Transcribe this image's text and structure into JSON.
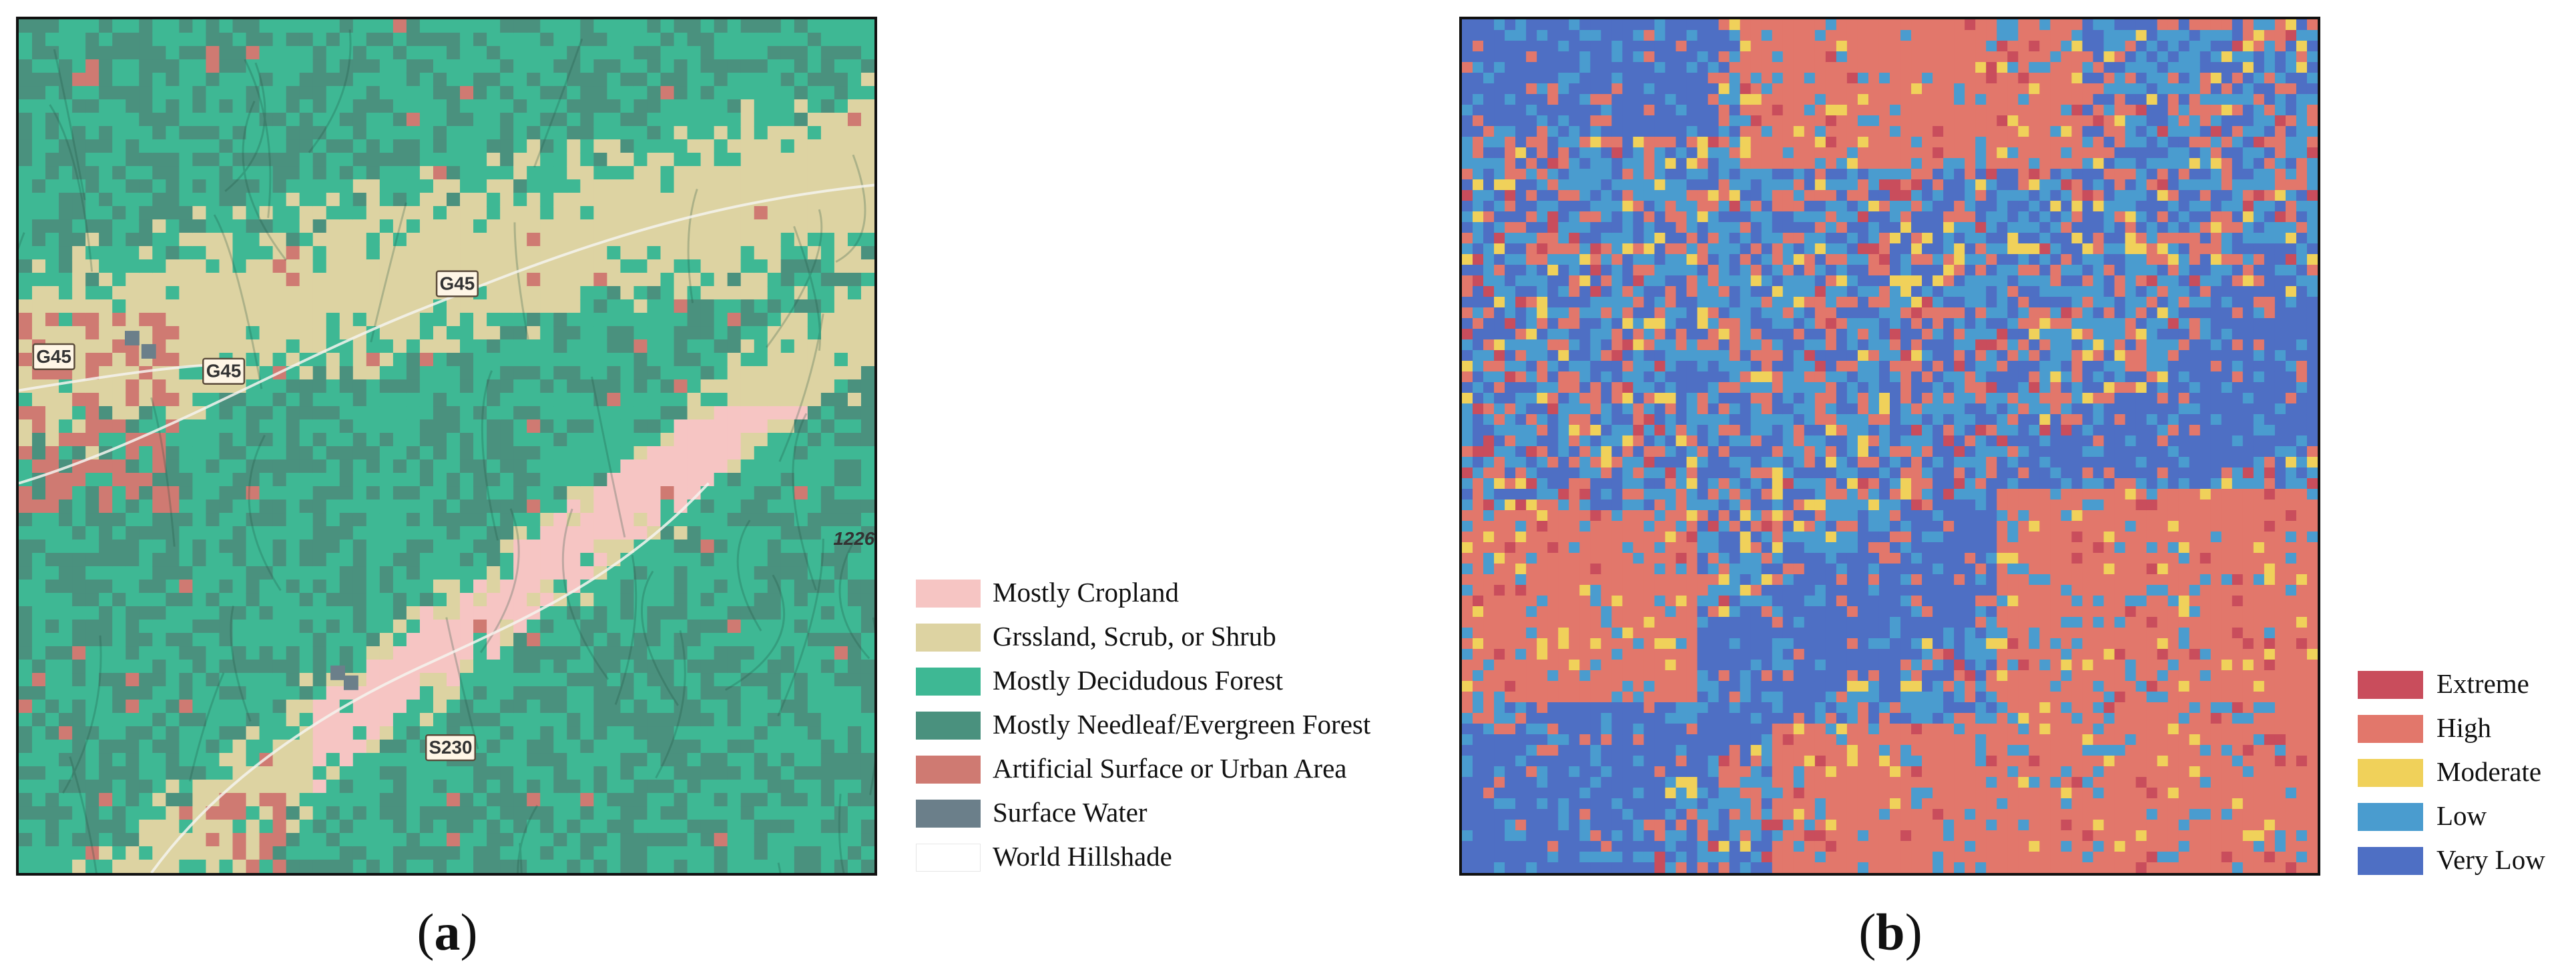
{
  "panel_a": {
    "label_open": "(",
    "label_letter": "a",
    "label_close": ")",
    "road_labels": [
      "G45",
      "G45",
      "G45",
      "S230",
      "1226"
    ],
    "legend": [
      {
        "label": "Mostly Cropland",
        "color": "#f6c5c3"
      },
      {
        "label": "Grssland, Scrub, or Shrub",
        "color": "#ddd3a2"
      },
      {
        "label": "Mostly Decidudous Forest",
        "color": "#3eb894"
      },
      {
        "label": "Mostly Needleaf/Evergreen Forest",
        "color": "#4a917e"
      },
      {
        "label": "Artificial Surface or Urban Area",
        "color": "#cf7a72"
      },
      {
        "label": "Surface Water",
        "color": "#6b7f8a"
      },
      {
        "label": "World Hillshade",
        "color": "#ffffff"
      }
    ]
  },
  "panel_b": {
    "label_open": "(",
    "label_letter": "b",
    "label_close": ")",
    "legend": [
      {
        "label": "Extreme",
        "color": "#c94d5c"
      },
      {
        "label": "High",
        "color": "#e2776b"
      },
      {
        "label": "Moderate",
        "color": "#f0d15a"
      },
      {
        "label": "Low",
        "color": "#4a9ccf"
      },
      {
        "label": "Very Low",
        "color": "#4e6fc4"
      }
    ]
  }
}
